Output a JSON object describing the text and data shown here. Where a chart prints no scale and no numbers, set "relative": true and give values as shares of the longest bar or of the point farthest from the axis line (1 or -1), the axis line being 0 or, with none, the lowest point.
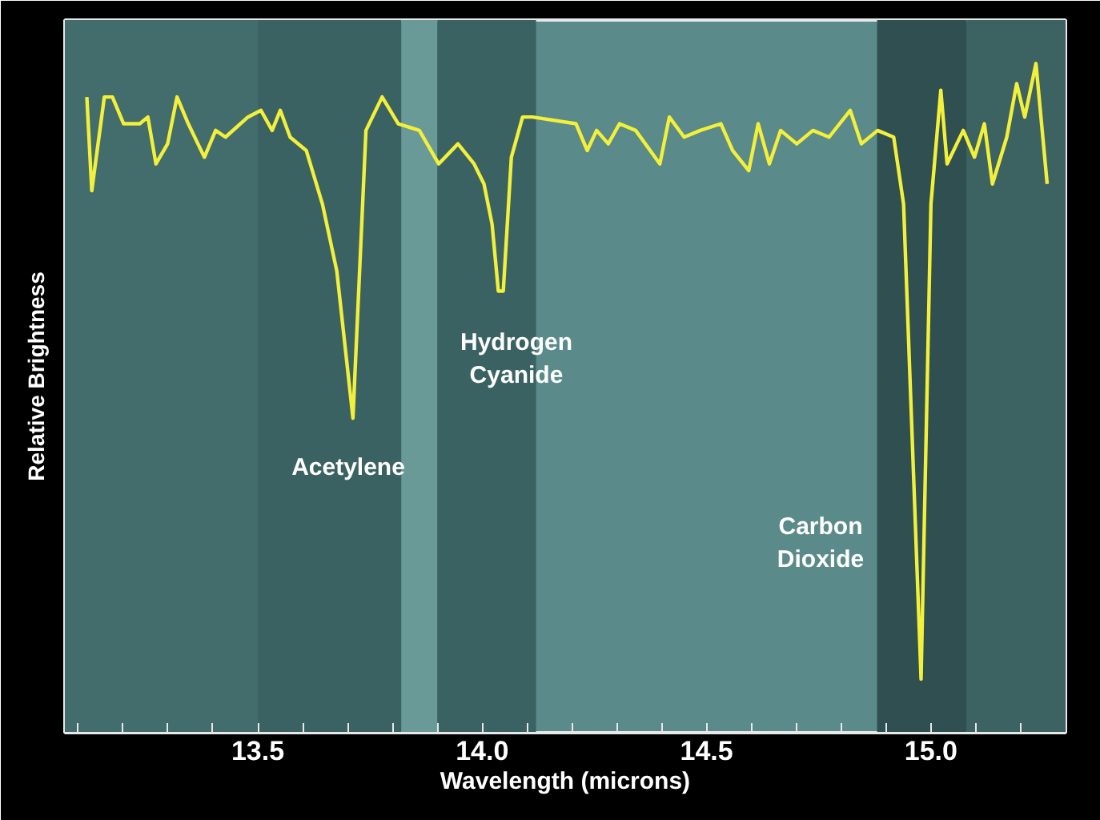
{
  "chart_data": {
    "type": "line",
    "relative": true,
    "xlabel": "Wavelength (microns)",
    "ylabel": "Relative Brightness",
    "xlim": [
      13.07,
      15.3
    ],
    "xticks": [
      {
        "value": 13.1,
        "label": null
      },
      {
        "value": 13.2,
        "label": null
      },
      {
        "value": 13.3,
        "label": null
      },
      {
        "value": 13.4,
        "label": null
      },
      {
        "value": 13.5,
        "label": "13.5"
      },
      {
        "value": 13.6,
        "label": null
      },
      {
        "value": 13.7,
        "label": null
      },
      {
        "value": 13.8,
        "label": null
      },
      {
        "value": 13.9,
        "label": null
      },
      {
        "value": 14.0,
        "label": "14.0"
      },
      {
        "value": 14.1,
        "label": null
      },
      {
        "value": 14.2,
        "label": null
      },
      {
        "value": 14.3,
        "label": null
      },
      {
        "value": 14.4,
        "label": null
      },
      {
        "value": 14.5,
        "label": "14.5"
      },
      {
        "value": 14.6,
        "label": null
      },
      {
        "value": 14.7,
        "label": null
      },
      {
        "value": 14.8,
        "label": null
      },
      {
        "value": 14.9,
        "label": null
      },
      {
        "value": 15.0,
        "label": "15.0"
      },
      {
        "value": 15.1,
        "label": null
      },
      {
        "value": 15.2,
        "label": null
      }
    ],
    "tick_labels": "x",
    "grid": false,
    "marker": "none",
    "line_style": "solid",
    "bands": [
      {
        "axis": "x",
        "from": 13.07,
        "to": 13.5,
        "color": "#436d6c"
      },
      {
        "axis": "x",
        "from": 13.5,
        "to": 13.82,
        "color": "#3b6262"
      },
      {
        "axis": "x",
        "from": 13.82,
        "to": 13.9,
        "color": "#6a9a98"
      },
      {
        "axis": "x",
        "from": 13.9,
        "to": 14.12,
        "color": "#3b6262"
      },
      {
        "axis": "x",
        "from": 14.88,
        "to": 15.08,
        "color": "#2f4f50"
      },
      {
        "axis": "x",
        "from": 15.08,
        "to": 15.3,
        "color": "#3d6262"
      }
    ],
    "annotations": [
      "Acetylene",
      "Hydrogen\nCyanide",
      "Carbon\nDioxide"
    ],
    "series": [
      {
        "color": "#f2f03a",
        "x": [
          13.119,
          13.13,
          13.158,
          13.176,
          13.201,
          13.237,
          13.255,
          13.273,
          13.299,
          13.32,
          13.345,
          13.381,
          13.406,
          13.428,
          13.478,
          13.507,
          13.532,
          13.55,
          13.572,
          13.608,
          13.644,
          13.676,
          13.712,
          13.741,
          13.777,
          13.813,
          13.86,
          13.903,
          13.946,
          13.982,
          14.004,
          14.022,
          14.036,
          14.047,
          14.065,
          14.09,
          14.112,
          14.209,
          14.234,
          14.255,
          14.281,
          14.306,
          14.342,
          14.396,
          14.417,
          14.45,
          14.486,
          14.532,
          14.558,
          14.594,
          14.615,
          14.64,
          14.665,
          14.701,
          14.737,
          14.773,
          14.82,
          14.845,
          14.881,
          14.917,
          14.939,
          14.978,
          15.0,
          15.022,
          15.036,
          15.072,
          15.097,
          15.119,
          15.137,
          15.169,
          15.191,
          15.209,
          15.234,
          15.259
        ],
        "values": [
          0.95,
          0.81,
          0.95,
          0.95,
          0.91,
          0.91,
          0.92,
          0.85,
          0.88,
          0.95,
          0.91,
          0.86,
          0.9,
          0.89,
          0.92,
          0.93,
          0.9,
          0.93,
          0.89,
          0.87,
          0.79,
          0.69,
          0.47,
          0.9,
          0.95,
          0.91,
          0.9,
          0.85,
          0.88,
          0.85,
          0.82,
          0.76,
          0.66,
          0.66,
          0.86,
          0.92,
          0.92,
          0.91,
          0.87,
          0.9,
          0.88,
          0.91,
          0.9,
          0.85,
          0.92,
          0.89,
          0.9,
          0.91,
          0.87,
          0.84,
          0.91,
          0.85,
          0.9,
          0.88,
          0.9,
          0.89,
          0.93,
          0.88,
          0.9,
          0.89,
          0.79,
          0.08,
          0.79,
          0.96,
          0.85,
          0.9,
          0.86,
          0.91,
          0.82,
          0.89,
          0.97,
          0.92,
          1.0,
          0.82
        ]
      }
    ]
  }
}
